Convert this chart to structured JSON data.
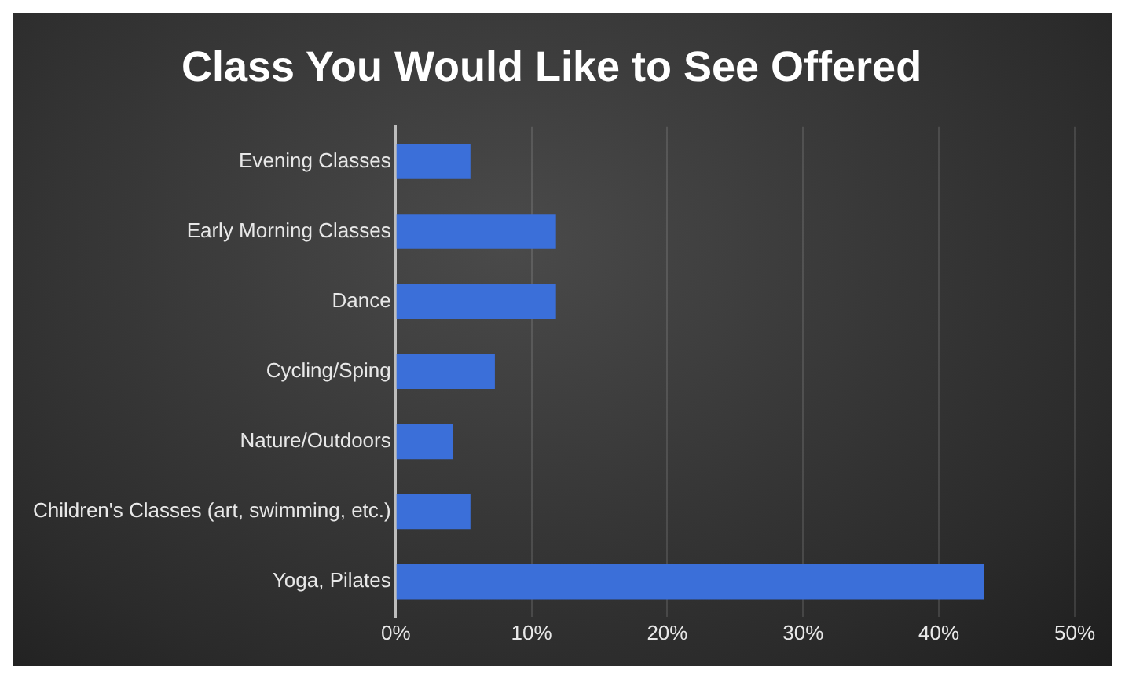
{
  "chart_data": {
    "type": "bar",
    "orientation": "horizontal",
    "title": "Class You Would Like to See Offered",
    "categories": [
      "Evening Classes",
      "Early Morning Classes",
      "Dance",
      "Cycling/Sping",
      "Nature/Outdoors",
      "Children's Classes (art, swimming, etc.)",
      "Yoga, Pilates"
    ],
    "values": [
      5.5,
      11.8,
      11.8,
      7.3,
      4.2,
      5.5,
      43.3
    ],
    "color": "#3b6fd9",
    "xlim": [
      0,
      50
    ],
    "xticks": [
      {
        "value": 0,
        "label": "0%"
      },
      {
        "value": 10,
        "label": "10%"
      },
      {
        "value": 20,
        "label": "20%"
      },
      {
        "value": 30,
        "label": "30%"
      },
      {
        "value": 40,
        "label": "40%"
      },
      {
        "value": 50,
        "label": "50%"
      }
    ],
    "grid": "x"
  }
}
